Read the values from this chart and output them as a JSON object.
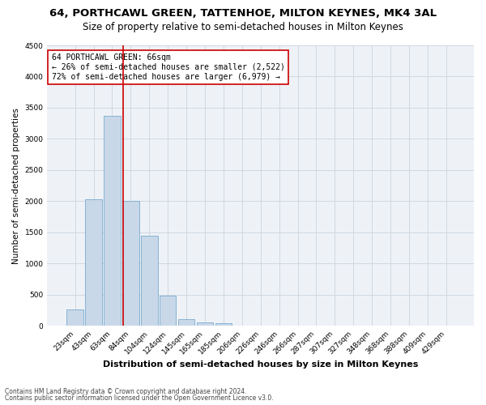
{
  "title1": "64, PORTHCAWL GREEN, TATTENHOE, MILTON KEYNES, MK4 3AL",
  "title2": "Size of property relative to semi-detached houses in Milton Keynes",
  "xlabel": "Distribution of semi-detached houses by size in Milton Keynes",
  "ylabel": "Number of semi-detached properties",
  "footer1": "Contains HM Land Registry data © Crown copyright and database right 2024.",
  "footer2": "Contains public sector information licensed under the Open Government Licence v3.0.",
  "bar_labels": [
    "23sqm",
    "43sqm",
    "63sqm",
    "84sqm",
    "104sqm",
    "124sqm",
    "145sqm",
    "165sqm",
    "185sqm",
    "206sqm",
    "226sqm",
    "246sqm",
    "266sqm",
    "287sqm",
    "307sqm",
    "327sqm",
    "348sqm",
    "368sqm",
    "388sqm",
    "409sqm",
    "429sqm"
  ],
  "bar_values": [
    270,
    2030,
    3370,
    2010,
    1450,
    490,
    105,
    55,
    50,
    0,
    0,
    0,
    0,
    0,
    0,
    0,
    0,
    0,
    0,
    0,
    0
  ],
  "bar_color": "#c8d8e8",
  "bar_edge_color": "#7aaacf",
  "bar_linewidth": 0.6,
  "red_line_color": "#cc0000",
  "annotation_text": "64 PORTHCAWL GREEN: 66sqm\n← 26% of semi-detached houses are smaller (2,522)\n72% of semi-detached houses are larger (6,979) →",
  "annotation_box_color": "#ffffff",
  "annotation_box_edge": "#cc0000",
  "ylim": [
    0,
    4500
  ],
  "yticks": [
    0,
    500,
    1000,
    1500,
    2000,
    2500,
    3000,
    3500,
    4000,
    4500
  ],
  "grid_color": "#d0d8e0",
  "bg_color": "#eef2f7",
  "title1_fontsize": 9.5,
  "title2_fontsize": 8.5,
  "xlabel_fontsize": 8,
  "ylabel_fontsize": 7.5,
  "tick_fontsize": 6.5,
  "annotation_fontsize": 7,
  "footer_fontsize": 5.5
}
